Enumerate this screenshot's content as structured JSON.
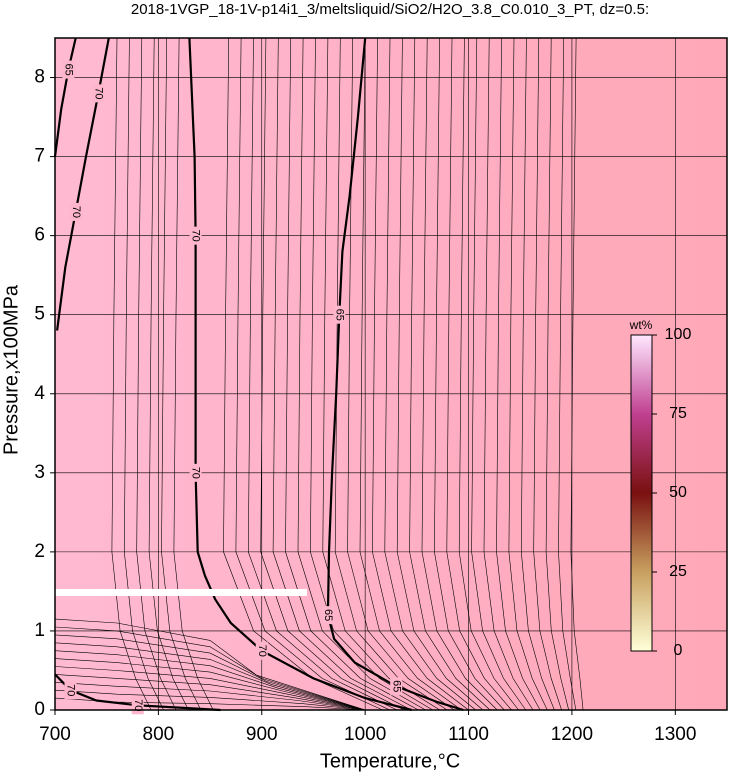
{
  "chart_data": {
    "type": "contour",
    "title": "2018-1VGP_18-1V-p14i1_3/meltsliquid/SiO2/H2O_3.8_C0.010_3_PT, dz=0.5:",
    "x_label": "Temperature,°C",
    "y_label": "Pressure,x100MPa",
    "xlim": [
      700,
      1350
    ],
    "ylim": [
      0,
      8.5
    ],
    "xticks": [
      700,
      800,
      900,
      1000,
      1100,
      1200,
      1300
    ],
    "yticks": [
      0,
      1,
      2,
      3,
      4,
      5,
      6,
      7,
      8
    ],
    "grid": true,
    "colorbar": {
      "label": "wt%",
      "lim": [
        0,
        100
      ],
      "ticks": [
        0,
        25,
        50,
        75,
        100
      ]
    },
    "contours": [
      {
        "level": 70,
        "x": [
          830,
          835,
          836,
          836,
          836,
          838,
          845,
          855,
          870,
          900,
          950,
          1000,
          1045
        ],
        "y": [
          8.5,
          7,
          6,
          4,
          3,
          2,
          1.7,
          1.4,
          1.1,
          0.75,
          0.4,
          0.15,
          0
        ]
      },
      {
        "level": 65,
        "x": [
          1000,
          993,
          985,
          978,
          975,
          972,
          968,
          965,
          964,
          970,
          990,
          1030,
          1070,
          1095
        ],
        "y": [
          8.5,
          7.5,
          6.5,
          5.8,
          5,
          4,
          3,
          2,
          1.2,
          0.9,
          0.6,
          0.3,
          0.1,
          0
        ]
      },
      {
        "level": 70,
        "x": [
          702,
          710,
          720,
          730,
          742,
          752
        ],
        "y": [
          4.8,
          5.6,
          6.3,
          7,
          7.8,
          8.5
        ]
      },
      {
        "level": 65,
        "x": [
          700,
          706,
          713,
          720
        ],
        "y": [
          7,
          7.6,
          8.1,
          8.5
        ]
      },
      {
        "level": 70,
        "x": [
          700,
          715,
          740,
          780,
          820,
          860
        ],
        "y": [
          0.45,
          0.25,
          0.12,
          0.06,
          0.03,
          0
        ]
      }
    ]
  }
}
